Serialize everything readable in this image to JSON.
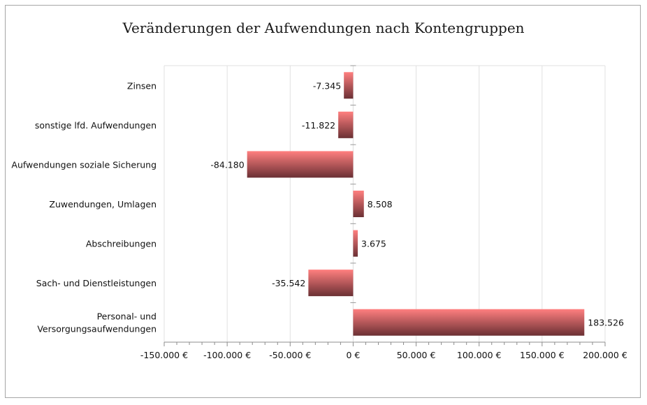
{
  "chart_data": {
    "type": "bar",
    "orientation": "horizontal",
    "title": "Veränderungen der Aufwendungen nach Kontengruppen",
    "categories": [
      "Zinsen",
      "sonstige lfd. Aufwendungen",
      "Aufwendungen soziale Sicherung",
      "Zuwendungen, Umlagen",
      "Abschreibungen",
      "Sach- und Dienstleistungen",
      "Personal- und Versorgungsaufwendungen"
    ],
    "category_lines": [
      [
        "Zinsen"
      ],
      [
        "sonstige lfd. Aufwendungen"
      ],
      [
        "Aufwendungen soziale Sicherung"
      ],
      [
        "Zuwendungen, Umlagen"
      ],
      [
        "Abschreibungen"
      ],
      [
        "Sach- und Dienstleistungen"
      ],
      [
        "Personal- und",
        "Versorgungsaufwendungen"
      ]
    ],
    "values": [
      -7345,
      -11822,
      -84180,
      8508,
      3675,
      -35542,
      183526
    ],
    "data_labels": [
      "-7.345",
      "-11.822",
      "-84.180",
      "8.508",
      "3.675",
      "-35.542",
      "183.526"
    ],
    "xlim": [
      -150000,
      200000
    ],
    "xticks": [
      -150000,
      -100000,
      -50000,
      0,
      50000,
      100000,
      150000,
      200000
    ],
    "xtick_labels": [
      "-150.000 €",
      "-100.000 €",
      "-50.000 €",
      "0 €",
      "50.000 €",
      "100.000 €",
      "150.000 €",
      "200.000 €"
    ],
    "xlabel": "",
    "ylabel": "",
    "grid": true,
    "legend": "none",
    "colors": {
      "bar_top": "#ff7f7f",
      "bar_bottom": "#6b3034",
      "grid": "#e0e0e0",
      "axis": "#8c8c8c"
    }
  }
}
